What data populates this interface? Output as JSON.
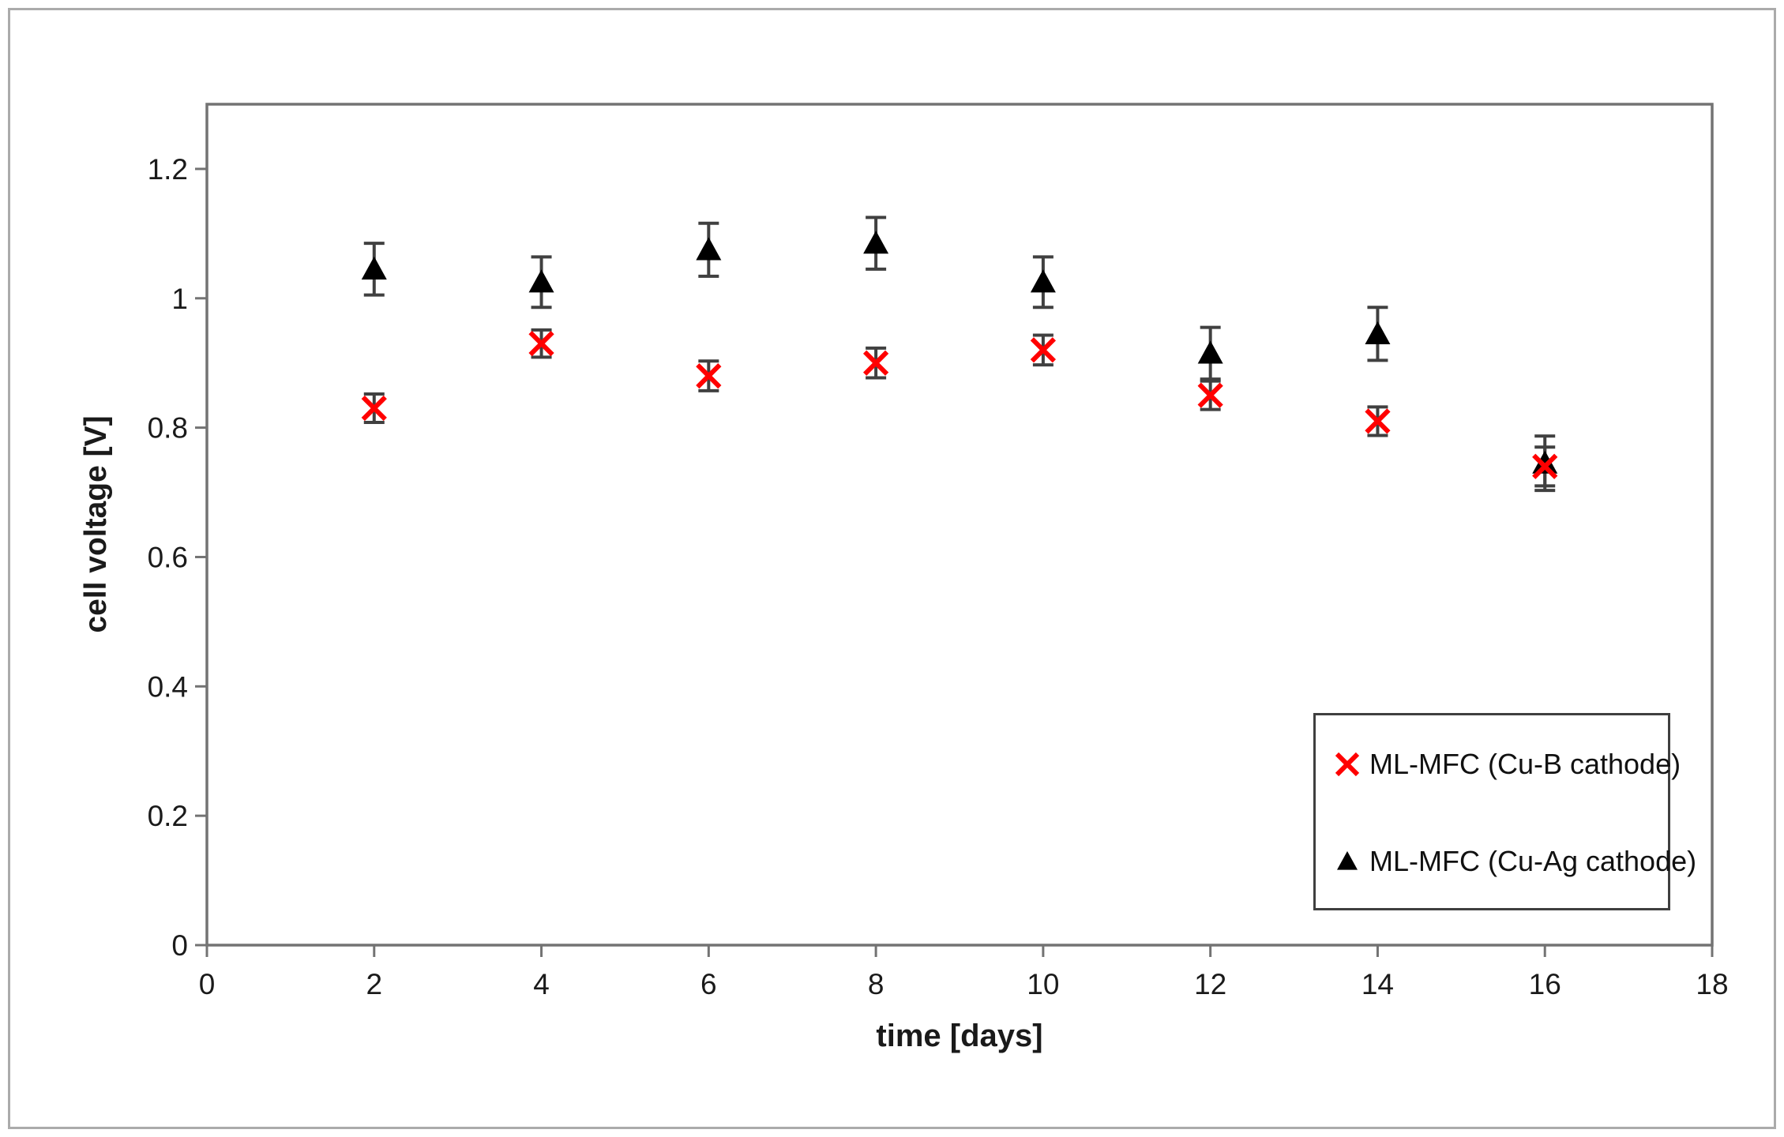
{
  "figure": {
    "background": "#ffffff",
    "frame_color": "#ababab"
  },
  "chart_data": {
    "type": "scatter",
    "title": "",
    "xlabel": "time [days]",
    "ylabel": "cell voltage [V]",
    "xlim": [
      0,
      18
    ],
    "ylim": [
      0,
      1.3
    ],
    "x_ticks": [
      0,
      2,
      4,
      6,
      8,
      10,
      12,
      14,
      16,
      18
    ],
    "x_tick_labels": [
      "0",
      "2",
      "4",
      "6",
      "8",
      "10",
      "12",
      "14",
      "16",
      "18"
    ],
    "y_ticks": [
      0,
      0.2,
      0.4,
      0.6,
      0.8,
      1,
      1.2
    ],
    "y_tick_labels": [
      "0",
      "0.2",
      "0.4",
      "0.6",
      "0.8",
      "1",
      "1.2"
    ],
    "grid": false,
    "legend_position": "inside-bottom-right",
    "x": [
      2,
      4,
      6,
      8,
      10,
      12,
      14,
      16
    ],
    "series": [
      {
        "name": "ML-MFC (Cu-B cathode)",
        "marker": "x",
        "color": "#ff0000",
        "values": [
          0.83,
          0.93,
          0.88,
          0.9,
          0.92,
          0.85,
          0.81,
          0.74
        ],
        "errors": [
          0.022,
          0.021,
          0.023,
          0.023,
          0.023,
          0.022,
          0.022,
          0.03
        ]
      },
      {
        "name": "ML-MFC (Cu-Ag cathode)",
        "marker": "triangle-up",
        "color": "#000000",
        "values": [
          1.045,
          1.025,
          1.075,
          1.085,
          1.025,
          0.915,
          0.945,
          0.745
        ],
        "errors": [
          0.04,
          0.039,
          0.041,
          0.04,
          0.039,
          0.04,
          0.041,
          0.042
        ]
      }
    ],
    "error_bar_color": "#404040",
    "axis_color": "#737373",
    "tick_label_color": "#1a1a1a"
  }
}
